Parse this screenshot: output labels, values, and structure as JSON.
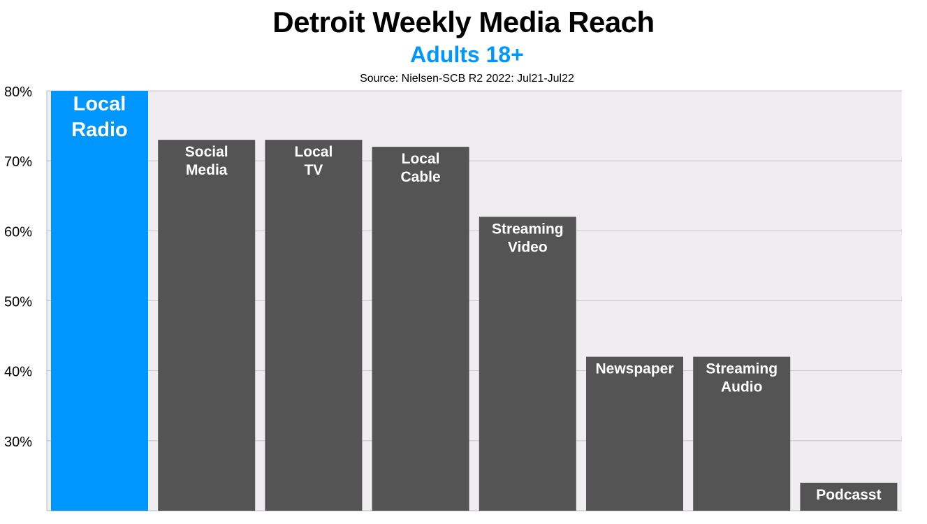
{
  "chart_data": {
    "type": "bar",
    "title": "Detroit Weekly Media Reach",
    "subtitle": "Adults 18+",
    "source": "Source: Nielsen-SCB R2 2022: Jul21-Jul22",
    "xlabel": "",
    "ylabel": "",
    "ylim": [
      20,
      80
    ],
    "yticks": [
      "30%",
      "40%",
      "50%",
      "60%",
      "70%",
      "80%"
    ],
    "ytick_values": [
      30,
      40,
      50,
      60,
      70,
      80
    ],
    "grid": true,
    "categories": [
      [
        "Local",
        "Radio"
      ],
      [
        "Social",
        "Media"
      ],
      [
        "Local",
        "TV"
      ],
      [
        "Local",
        "Cable"
      ],
      [
        "Streaming",
        "Video"
      ],
      [
        "Newspaper"
      ],
      [
        "Streaming",
        "Audio"
      ],
      [
        "Podcasst"
      ]
    ],
    "values": [
      80,
      73,
      73,
      72,
      62,
      42,
      42,
      24
    ],
    "highlight_color": "#0096ff",
    "bar_color": "#545454",
    "plot_background": "#efedf0"
  }
}
